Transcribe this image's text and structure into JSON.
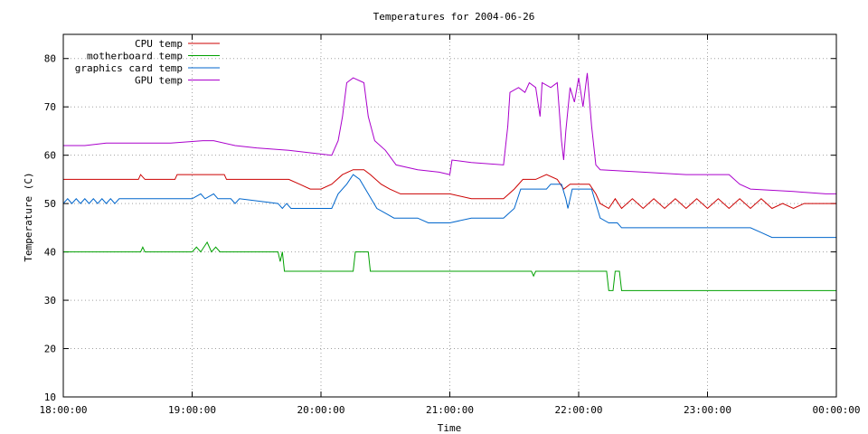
{
  "chart_data": {
    "type": "line",
    "title": "Temperatures for 2004-06-26",
    "xlabel": "Time",
    "ylabel": "Temperature (C)",
    "xlim": [
      "18:00:00",
      "00:00:00"
    ],
    "ylim": [
      10,
      85
    ],
    "x_ticks": [
      "18:00:00",
      "19:00:00",
      "20:00:00",
      "21:00:00",
      "22:00:00",
      "23:00:00",
      "00:00:00"
    ],
    "y_ticks": [
      10,
      20,
      30,
      40,
      50,
      60,
      70,
      80
    ],
    "grid": true,
    "legend_position": "top-left",
    "series": [
      {
        "name": "CPU temp",
        "color": "#cc0000",
        "points": [
          [
            "18:00:00",
            55
          ],
          [
            "18:35:00",
            55
          ],
          [
            "18:36:00",
            56
          ],
          [
            "18:38:00",
            55
          ],
          [
            "18:52:00",
            55
          ],
          [
            "18:53:00",
            56
          ],
          [
            "19:15:00",
            56
          ],
          [
            "19:16:00",
            55
          ],
          [
            "19:45:00",
            55
          ],
          [
            "19:50:00",
            54
          ],
          [
            "19:55:00",
            53
          ],
          [
            "20:00:00",
            53
          ],
          [
            "20:05:00",
            54
          ],
          [
            "20:10:00",
            56
          ],
          [
            "20:15:00",
            57
          ],
          [
            "20:20:00",
            57
          ],
          [
            "20:23:00",
            56
          ],
          [
            "20:28:00",
            54
          ],
          [
            "20:32:00",
            53
          ],
          [
            "20:37:00",
            52
          ],
          [
            "21:00:00",
            52
          ],
          [
            "21:10:00",
            51
          ],
          [
            "21:25:00",
            51
          ],
          [
            "21:30:00",
            53
          ],
          [
            "21:34:00",
            55
          ],
          [
            "21:40:00",
            55
          ],
          [
            "21:45:00",
            56
          ],
          [
            "21:50:00",
            55
          ],
          [
            "21:53:00",
            53
          ],
          [
            "21:56:00",
            54
          ],
          [
            "22:05:00",
            54
          ],
          [
            "22:08:00",
            52
          ],
          [
            "22:10:00",
            50
          ],
          [
            "22:14:00",
            49
          ],
          [
            "22:17:00",
            51
          ],
          [
            "22:20:00",
            49
          ],
          [
            "22:25:00",
            51
          ],
          [
            "22:30:00",
            49
          ],
          [
            "22:35:00",
            51
          ],
          [
            "22:40:00",
            49
          ],
          [
            "22:45:00",
            51
          ],
          [
            "22:50:00",
            49
          ],
          [
            "22:55:00",
            51
          ],
          [
            "23:00:00",
            49
          ],
          [
            "23:05:00",
            51
          ],
          [
            "23:10:00",
            49
          ],
          [
            "23:15:00",
            51
          ],
          [
            "23:20:00",
            49
          ],
          [
            "23:25:00",
            51
          ],
          [
            "23:30:00",
            49
          ],
          [
            "23:35:00",
            50
          ],
          [
            "23:40:00",
            49
          ],
          [
            "23:45:00",
            50
          ],
          [
            "00:00:00",
            50
          ]
        ]
      },
      {
        "name": "motherboard temp",
        "color": "#00a000",
        "points": [
          [
            "18:00:00",
            40
          ],
          [
            "18:36:00",
            40
          ],
          [
            "18:37:00",
            41
          ],
          [
            "18:38:00",
            40
          ],
          [
            "19:00:00",
            40
          ],
          [
            "19:02:00",
            41
          ],
          [
            "19:04:00",
            40
          ],
          [
            "19:07:00",
            42
          ],
          [
            "19:09:00",
            40
          ],
          [
            "19:11:00",
            41
          ],
          [
            "19:13:00",
            40
          ],
          [
            "19:40:00",
            40
          ],
          [
            "19:41:00",
            38
          ],
          [
            "19:42:00",
            40
          ],
          [
            "19:43:00",
            36
          ],
          [
            "20:15:00",
            36
          ],
          [
            "20:16:00",
            40
          ],
          [
            "20:22:00",
            40
          ],
          [
            "20:23:00",
            36
          ],
          [
            "21:38:00",
            36
          ],
          [
            "21:39:00",
            35
          ],
          [
            "21:40:00",
            36
          ],
          [
            "22:13:00",
            36
          ],
          [
            "22:14:00",
            32
          ],
          [
            "22:16:00",
            32
          ],
          [
            "22:17:00",
            36
          ],
          [
            "22:19:00",
            36
          ],
          [
            "22:20:00",
            32
          ],
          [
            "00:00:00",
            32
          ]
        ]
      },
      {
        "name": "graphics card temp",
        "color": "#0066cc",
        "points": [
          [
            "18:00:00",
            50
          ],
          [
            "18:02:00",
            51
          ],
          [
            "18:04:00",
            50
          ],
          [
            "18:06:00",
            51
          ],
          [
            "18:08:00",
            50
          ],
          [
            "18:10:00",
            51
          ],
          [
            "18:12:00",
            50
          ],
          [
            "18:14:00",
            51
          ],
          [
            "18:16:00",
            50
          ],
          [
            "18:18:00",
            51
          ],
          [
            "18:20:00",
            50
          ],
          [
            "18:22:00",
            51
          ],
          [
            "18:24:00",
            50
          ],
          [
            "18:26:00",
            51
          ],
          [
            "19:00:00",
            51
          ],
          [
            "19:04:00",
            52
          ],
          [
            "19:06:00",
            51
          ],
          [
            "19:10:00",
            52
          ],
          [
            "19:12:00",
            51
          ],
          [
            "19:18:00",
            51
          ],
          [
            "19:20:00",
            50
          ],
          [
            "19:22:00",
            51
          ],
          [
            "19:40:00",
            50
          ],
          [
            "19:42:00",
            49
          ],
          [
            "19:44:00",
            50
          ],
          [
            "19:46:00",
            49
          ],
          [
            "19:48:00",
            49
          ],
          [
            "20:05:00",
            49
          ],
          [
            "20:08:00",
            52
          ],
          [
            "20:12:00",
            54
          ],
          [
            "20:15:00",
            56
          ],
          [
            "20:18:00",
            55
          ],
          [
            "20:22:00",
            52
          ],
          [
            "20:26:00",
            49
          ],
          [
            "20:30:00",
            48
          ],
          [
            "20:34:00",
            47
          ],
          [
            "20:45:00",
            47
          ],
          [
            "20:50:00",
            46
          ],
          [
            "21:00:00",
            46
          ],
          [
            "21:10:00",
            47
          ],
          [
            "21:25:00",
            47
          ],
          [
            "21:30:00",
            49
          ],
          [
            "21:33:00",
            53
          ],
          [
            "21:45:00",
            53
          ],
          [
            "21:47:00",
            54
          ],
          [
            "21:52:00",
            54
          ],
          [
            "21:54:00",
            51
          ],
          [
            "21:55:00",
            49
          ],
          [
            "21:57:00",
            53
          ],
          [
            "22:06:00",
            53
          ],
          [
            "22:08:00",
            50
          ],
          [
            "22:10:00",
            47
          ],
          [
            "22:14:00",
            46
          ],
          [
            "22:18:00",
            46
          ],
          [
            "22:20:00",
            45
          ],
          [
            "22:50:00",
            45
          ],
          [
            "23:20:00",
            45
          ],
          [
            "23:25:00",
            44
          ],
          [
            "23:30:00",
            43
          ],
          [
            "23:40:00",
            43
          ],
          [
            "23:50:00",
            43
          ],
          [
            "00:00:00",
            43
          ]
        ]
      },
      {
        "name": "GPU temp",
        "color": "#aa00cc",
        "points": [
          [
            "18:00:00",
            62
          ],
          [
            "18:10:00",
            62
          ],
          [
            "18:20:00",
            62.5
          ],
          [
            "18:35:00",
            62.5
          ],
          [
            "18:50:00",
            62.5
          ],
          [
            "19:05:00",
            63
          ],
          [
            "19:10:00",
            63
          ],
          [
            "19:20:00",
            62
          ],
          [
            "19:30:00",
            61.5
          ],
          [
            "19:45:00",
            61
          ],
          [
            "19:55:00",
            60.5
          ],
          [
            "20:05:00",
            60
          ],
          [
            "20:08:00",
            63
          ],
          [
            "20:10:00",
            68
          ],
          [
            "20:12:00",
            75
          ],
          [
            "20:15:00",
            76
          ],
          [
            "20:20:00",
            75
          ],
          [
            "20:22:00",
            68
          ],
          [
            "20:25:00",
            63
          ],
          [
            "20:30:00",
            61
          ],
          [
            "20:35:00",
            58
          ],
          [
            "20:45:00",
            57
          ],
          [
            "20:55:00",
            56.5
          ],
          [
            "21:00:00",
            56
          ],
          [
            "21:01:00",
            59
          ],
          [
            "21:10:00",
            58.5
          ],
          [
            "21:25:00",
            58
          ],
          [
            "21:27:00",
            66
          ],
          [
            "21:28:00",
            73
          ],
          [
            "21:32:00",
            74
          ],
          [
            "21:35:00",
            73
          ],
          [
            "21:37:00",
            75
          ],
          [
            "21:40:00",
            74
          ],
          [
            "21:42:00",
            68
          ],
          [
            "21:43:00",
            75
          ],
          [
            "21:47:00",
            74
          ],
          [
            "21:50:00",
            75
          ],
          [
            "21:52:00",
            63
          ],
          [
            "21:53:00",
            59
          ],
          [
            "21:54:00",
            65
          ],
          [
            "21:56:00",
            74
          ],
          [
            "21:58:00",
            71
          ],
          [
            "22:00:00",
            76
          ],
          [
            "22:02:00",
            70
          ],
          [
            "22:04:00",
            77
          ],
          [
            "22:06:00",
            66
          ],
          [
            "22:08:00",
            58
          ],
          [
            "22:10:00",
            57
          ],
          [
            "22:30:00",
            56.5
          ],
          [
            "22:50:00",
            56
          ],
          [
            "23:10:00",
            56
          ],
          [
            "23:15:00",
            54
          ],
          [
            "23:20:00",
            53
          ],
          [
            "23:40:00",
            52.5
          ],
          [
            "23:55:00",
            52
          ],
          [
            "00:00:00",
            52
          ]
        ]
      }
    ]
  }
}
